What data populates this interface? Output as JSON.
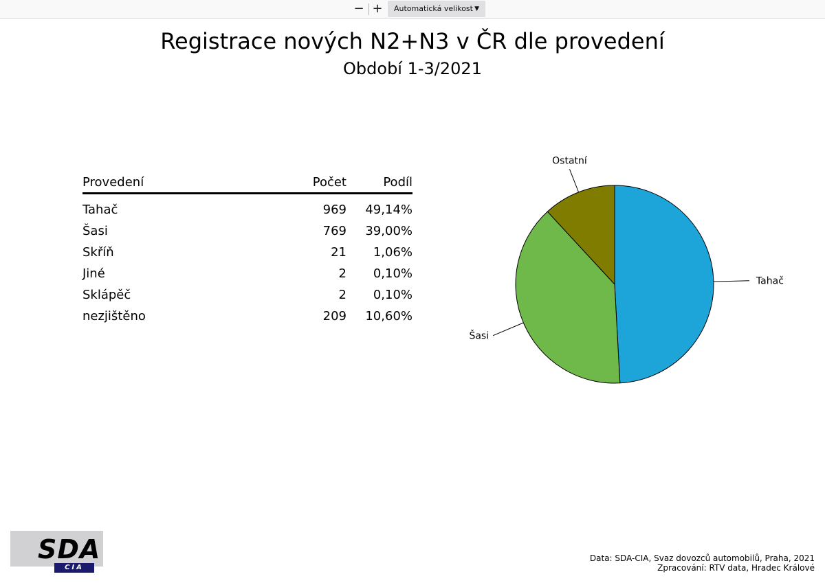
{
  "toolbar": {
    "zoom_out_label": "−",
    "zoom_in_label": "+",
    "zoom_select_value": "Automatická velikost"
  },
  "header": {
    "title": "Registrace nových N2+N3 v ČR dle provedení",
    "subtitle": "Období 1-3/2021"
  },
  "table": {
    "columns": [
      "Provedení",
      "Počet",
      "Podíl"
    ],
    "rows": [
      [
        "Tahač",
        "969",
        "49,14%"
      ],
      [
        "Šasi",
        "769",
        "39,00%"
      ],
      [
        "Skříň",
        "21",
        "1,06%"
      ],
      [
        "Jiné",
        "2",
        "0,10%"
      ],
      [
        "Sklápěč",
        "2",
        "0,10%"
      ],
      [
        "nezjištěno",
        "209",
        "10,60%"
      ]
    ]
  },
  "chart_data": {
    "type": "pie",
    "title": "",
    "categories": [
      "Tahač",
      "Šasi",
      "Ostatní"
    ],
    "values": [
      49.14,
      39.0,
      11.86
    ],
    "colors": [
      "#1da4d8",
      "#6fb84a",
      "#7f7c00"
    ],
    "start": "top",
    "direction": "clockwise",
    "labels": "outside with leader lines",
    "legend": "none"
  },
  "logo": {
    "name": "SDA",
    "sub": "CIA"
  },
  "footer": {
    "line1": "Data: SDA-CIA, Svaz dovozců automobilů, Praha, 2021",
    "line2": "Zpracování: RTV data, Hradec Králové"
  }
}
